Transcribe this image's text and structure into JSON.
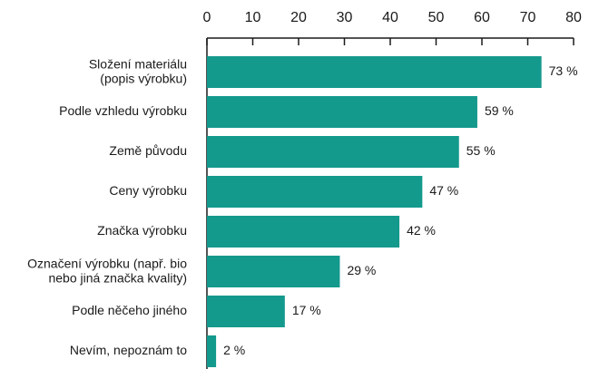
{
  "chart_data": {
    "type": "barh",
    "categories": [
      "Složení materiálu\n(popis výrobku)",
      "Podle vzhledu výrobku",
      "Země původu",
      "Ceny výrobku",
      "Značka výrobku",
      "Označení výrobku (např. bio\nnebo jiná značka kvality)",
      "Podle něčeho jiného",
      "Nevím, nepoznám to"
    ],
    "values": [
      73,
      59,
      55,
      47,
      42,
      29,
      17,
      2
    ],
    "value_labels": [
      "73 %",
      "59 %",
      "55 %",
      "47 %",
      "42 %",
      "29 %",
      "17 %",
      "2 %"
    ],
    "color": "#14998d",
    "xlim": [
      0,
      80
    ],
    "xticks": [
      0,
      10,
      20,
      30,
      40,
      50,
      60,
      70,
      80
    ]
  }
}
